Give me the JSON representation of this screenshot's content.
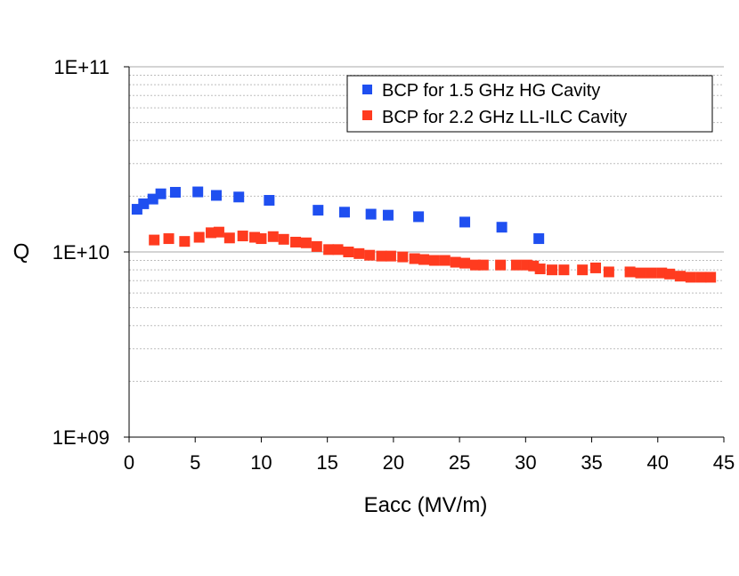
{
  "chart_data": {
    "type": "scatter",
    "title": "",
    "xlabel": "Eacc (MV/m)",
    "ylabel": "Q",
    "xlim": [
      0,
      45
    ],
    "ylim": [
      1000000000,
      100000000000
    ],
    "yscale": "log",
    "x_ticks": [
      0,
      5,
      10,
      15,
      20,
      25,
      30,
      35,
      40,
      45
    ],
    "x_tick_labels": [
      "0",
      "5",
      "10",
      "15",
      "20",
      "25",
      "30",
      "35",
      "40",
      "45"
    ],
    "y_ticks": [
      1000000000,
      10000000000,
      100000000000
    ],
    "y_tick_labels": [
      "1E+09",
      "1E+10",
      "1E+11"
    ],
    "grid": true,
    "legend_position": "top-right",
    "series": [
      {
        "name": "BCP for 1.5 GHz HG Cavity",
        "color": "#1f4ff0",
        "x": [
          0.6,
          1.1,
          1.8,
          2.4,
          3.5,
          5.2,
          6.6,
          8.3,
          10.6,
          14.3,
          16.3,
          18.3,
          19.6,
          21.9,
          25.4,
          28.2,
          31.0
        ],
        "y": [
          17000000000,
          18200000000,
          19300000000,
          20600000000,
          21000000000,
          21100000000,
          20200000000,
          19800000000,
          19000000000,
          16800000000,
          16400000000,
          16000000000,
          15800000000,
          15500000000,
          14500000000,
          13600000000,
          11800000000
        ]
      },
      {
        "name": "BCP for 2.2 GHz LL-ILC Cavity",
        "color": "#ff3b1f",
        "x": [
          1.9,
          3.0,
          4.2,
          5.3,
          6.2,
          6.8,
          7.6,
          8.6,
          9.5,
          10.0,
          10.9,
          11.7,
          12.6,
          13.4,
          14.2,
          15.1,
          15.8,
          16.6,
          17.4,
          18.2,
          19.1,
          19.8,
          20.7,
          21.6,
          22.3,
          23.1,
          23.9,
          24.7,
          25.4,
          26.2,
          26.8,
          28.1,
          29.3,
          30.1,
          30.6,
          31.1,
          32.0,
          32.9,
          34.3,
          35.3,
          36.3,
          37.9,
          38.7,
          39.5,
          40.3,
          40.9,
          41.7,
          42.5,
          43.3,
          44.0
        ],
        "y": [
          11600000000,
          11800000000,
          11400000000,
          12000000000,
          12700000000,
          12800000000,
          11900000000,
          12200000000,
          12000000000,
          11800000000,
          12100000000,
          11700000000,
          11300000000,
          11200000000,
          10700000000,
          10300000000,
          10300000000,
          10000000000,
          9800000000,
          9600000000,
          9500000000,
          9500000000,
          9400000000,
          9200000000,
          9100000000,
          9000000000,
          9000000000,
          8800000000,
          8700000000,
          8500000000,
          8500000000,
          8500000000,
          8500000000,
          8500000000,
          8400000000,
          8100000000,
          8000000000,
          8000000000,
          8000000000,
          8200000000,
          7800000000,
          7800000000,
          7700000000,
          7700000000,
          7700000000,
          7600000000,
          7400000000,
          7300000000,
          7300000000,
          7300000000
        ]
      }
    ]
  }
}
